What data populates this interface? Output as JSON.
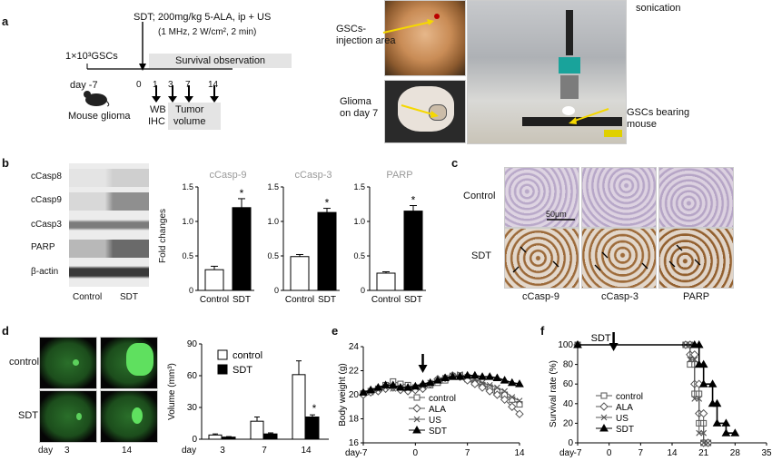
{
  "panels": {
    "a": "a",
    "b": "b",
    "c": "c",
    "d": "d",
    "e": "e",
    "f": "f"
  },
  "a": {
    "cells": "1×10³GSCs",
    "sdt_protocol": "SDT; 200mg/kg 5-ALA, ip + US",
    "us_params": "(1 MHz, 2 W/cm², 2 min)",
    "survival": "Survival observation",
    "day_label": "day -7",
    "mouse_label": "Mouse glioma",
    "days": [
      "0",
      "1",
      "3",
      "7",
      "14"
    ],
    "wb": "WB",
    "ihc": "IHC",
    "tumor_volume_1": "Tumor",
    "tumor_volume_2": "volume",
    "gsc_injection_1": "GSCs-",
    "gsc_injection_2": "injection area",
    "glioma_day7_1": "Glioma",
    "glioma_day7_2": "on day 7",
    "sonication": "sonication",
    "gsc_mouse_1": "GSCs bearing",
    "gsc_mouse_2": "mouse"
  },
  "b": {
    "blot_labels": [
      "cCasp8",
      "cCasp9",
      "cCasp3",
      "PARP",
      "β-actin"
    ],
    "blot_x": [
      "Control",
      "SDT"
    ],
    "ylabel": "Fold changes",
    "star": "*"
  },
  "c": {
    "rows": [
      "Control",
      "SDT"
    ],
    "cols": [
      "cCasp-9",
      "cCasp-3",
      "PARP"
    ],
    "scale": "50μm"
  },
  "d": {
    "rows": [
      "control",
      "SDT"
    ],
    "day_label": "day",
    "days": [
      "3",
      "14"
    ],
    "star": "*"
  },
  "chart_data": [
    {
      "type": "bar",
      "title": "cCasp-9",
      "ylabel": "Fold changes",
      "categories": [
        "Control",
        "SDT"
      ],
      "values": [
        0.3,
        1.2
      ],
      "errors": [
        0.05,
        0.13
      ],
      "colors": [
        "#ffffff",
        "#000000"
      ],
      "ylim": [
        0,
        1.5
      ],
      "yticks": [
        "0",
        "0.5",
        "1.0",
        "1.5"
      ],
      "star_on": [
        1
      ]
    },
    {
      "type": "bar",
      "title": "cCasp-3",
      "categories": [
        "Control",
        "SDT"
      ],
      "values": [
        0.49,
        1.13
      ],
      "errors": [
        0.03,
        0.06
      ],
      "colors": [
        "#ffffff",
        "#000000"
      ],
      "ylim": [
        0,
        1.5
      ],
      "yticks": [
        "0",
        "0.5",
        "1.0",
        "1.5"
      ],
      "star_on": [
        1
      ]
    },
    {
      "type": "bar",
      "title": "PARP",
      "categories": [
        "Control",
        "SDT"
      ],
      "values": [
        0.25,
        1.15
      ],
      "errors": [
        0.02,
        0.08
      ],
      "colors": [
        "#ffffff",
        "#000000"
      ],
      "ylim": [
        0,
        1.5
      ],
      "yticks": [
        "0",
        "0.5",
        "1.0",
        "1.5"
      ],
      "star_on": [
        1
      ]
    },
    {
      "type": "bar",
      "ylabel": "Volume (mm³)",
      "xlabel": "day",
      "categories": [
        "3",
        "7",
        "14"
      ],
      "series": [
        {
          "name": "control",
          "color": "#ffffff",
          "values": [
            4,
            17,
            61
          ],
          "errors": [
            1,
            4,
            13
          ]
        },
        {
          "name": "SDT",
          "color": "#000000",
          "values": [
            2,
            5,
            21
          ],
          "errors": [
            0.5,
            1,
            2
          ]
        }
      ],
      "ylim": [
        0,
        90
      ],
      "yticks": [
        "0",
        "30",
        "60",
        "90"
      ],
      "star": "*"
    },
    {
      "type": "line",
      "ylabel": "Body weight (g)",
      "xlabel": "day",
      "xlim": [
        -7,
        14
      ],
      "xticks": [
        "-7",
        "0",
        "7",
        "14"
      ],
      "ylim": [
        16,
        24
      ],
      "yticks": [
        "16",
        "18",
        "20",
        "22",
        "24"
      ],
      "arrow_at": 1,
      "series": [
        {
          "name": "control",
          "marker": "square",
          "x": [
            -7,
            -6,
            -5,
            -4,
            -3,
            -2,
            -1,
            0,
            1,
            2,
            3,
            4,
            5,
            6,
            7,
            8,
            9,
            10,
            11,
            12,
            13,
            14
          ],
          "y": [
            20.1,
            20.3,
            20.5,
            20.8,
            21.1,
            20.9,
            20.8,
            20.6,
            20.7,
            20.8,
            21.0,
            21.2,
            21.5,
            21.6,
            21.3,
            21.0,
            20.8,
            20.6,
            20.3,
            20.0,
            19.6,
            19.2
          ]
        },
        {
          "name": "ALA",
          "marker": "diamond",
          "x": [
            -7,
            -6,
            -5,
            -4,
            -3,
            -2,
            -1,
            0,
            1,
            2,
            3,
            4,
            5,
            6,
            7,
            8,
            9,
            10,
            11,
            12,
            13,
            14
          ],
          "y": [
            20.0,
            20.2,
            20.3,
            20.5,
            20.6,
            20.4,
            20.3,
            20.4,
            20.5,
            20.9,
            21.3,
            21.4,
            21.6,
            21.5,
            21.2,
            20.9,
            20.6,
            20.3,
            20.0,
            19.6,
            19.0,
            18.4
          ]
        },
        {
          "name": "US",
          "marker": "cross",
          "x": [
            -7,
            -6,
            -5,
            -4,
            -3,
            -2,
            -1,
            0,
            1,
            2,
            3,
            4,
            5,
            6,
            7,
            8,
            9,
            10,
            11,
            12,
            13,
            14
          ],
          "y": [
            20.1,
            20.2,
            20.4,
            20.6,
            20.5,
            20.6,
            20.5,
            20.6,
            20.7,
            21.0,
            21.2,
            21.4,
            21.6,
            21.7,
            21.5,
            21.3,
            21.0,
            20.8,
            20.6,
            20.3,
            19.8,
            19.5
          ]
        },
        {
          "name": "SDT",
          "marker": "triangle",
          "x": [
            -7,
            -6,
            -5,
            -4,
            -3,
            -2,
            -1,
            0,
            1,
            2,
            3,
            4,
            5,
            6,
            7,
            8,
            9,
            10,
            11,
            12,
            13,
            14
          ],
          "y": [
            20.2,
            20.4,
            20.6,
            20.8,
            20.8,
            20.6,
            20.6,
            20.7,
            20.9,
            21.0,
            21.2,
            21.4,
            21.5,
            21.5,
            21.6,
            21.6,
            21.5,
            21.5,
            21.4,
            21.2,
            21.0,
            20.9
          ]
        }
      ]
    },
    {
      "type": "line",
      "ylabel": "Survival rate (%)",
      "xlabel": "day",
      "xlim": [
        -7,
        35
      ],
      "xticks": [
        "-7",
        "0",
        "7",
        "14",
        "21",
        "28",
        "35"
      ],
      "ylim": [
        0,
        100
      ],
      "yticks": [
        "0",
        "20",
        "40",
        "60",
        "80",
        "100"
      ],
      "arrow_label": "SDT",
      "arrow_at": 1,
      "series": [
        {
          "name": "control",
          "marker": "square",
          "x": [
            -7,
            17,
            18,
            18,
            19,
            19,
            20,
            20,
            21,
            21,
            22
          ],
          "y": [
            100,
            100,
            100,
            80,
            80,
            50,
            50,
            20,
            20,
            0,
            0
          ]
        },
        {
          "name": "ALA",
          "marker": "diamond",
          "x": [
            -7,
            17,
            18,
            18,
            19,
            19,
            20,
            20,
            21,
            21,
            22
          ],
          "y": [
            100,
            100,
            100,
            90,
            90,
            60,
            60,
            30,
            30,
            0,
            0
          ]
        },
        {
          "name": "US",
          "marker": "cross",
          "x": [
            -7,
            17,
            18,
            18,
            19,
            19,
            20,
            20,
            21,
            21,
            22
          ],
          "y": [
            100,
            100,
            100,
            85,
            85,
            45,
            45,
            10,
            10,
            0,
            0
          ]
        },
        {
          "name": "SDT",
          "marker": "triangle",
          "x": [
            -7,
            19,
            20,
            20,
            21,
            21,
            23,
            23,
            24,
            24,
            26,
            26,
            28
          ],
          "y": [
            100,
            100,
            100,
            80,
            80,
            60,
            60,
            40,
            40,
            20,
            20,
            10,
            10
          ]
        }
      ]
    }
  ]
}
